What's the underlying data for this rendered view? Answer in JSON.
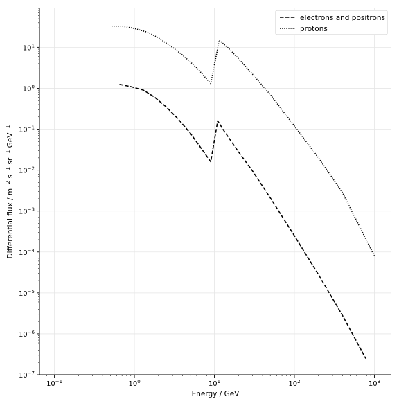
{
  "chart_data": {
    "type": "line",
    "xlabel": "Energy / GeV",
    "ylabel_parts": {
      "prefix": "Differential flux / m",
      "m_exp": "−2",
      "mid1": " s",
      "s_exp": "−1",
      "mid2": " sr",
      "sr_exp": "−1",
      "mid3": " GeV",
      "gev_exp": "−1"
    },
    "xscale": "log",
    "yscale": "log",
    "xlim": [
      0.065,
      1600
    ],
    "ylim": [
      1e-07,
      90
    ],
    "x_ticks": [
      {
        "value": 0.1,
        "base": "10",
        "exp": "−1"
      },
      {
        "value": 1,
        "base": "10",
        "exp": "0"
      },
      {
        "value": 10,
        "base": "10",
        "exp": "1"
      },
      {
        "value": 100,
        "base": "10",
        "exp": "2"
      },
      {
        "value": 1000,
        "base": "10",
        "exp": "3"
      }
    ],
    "y_ticks": [
      {
        "value": 1e-07,
        "base": "10",
        "exp": "−7"
      },
      {
        "value": 1e-06,
        "base": "10",
        "exp": "−6"
      },
      {
        "value": 1e-05,
        "base": "10",
        "exp": "−5"
      },
      {
        "value": 0.0001,
        "base": "10",
        "exp": "−4"
      },
      {
        "value": 0.001,
        "base": "10",
        "exp": "−3"
      },
      {
        "value": 0.01,
        "base": "10",
        "exp": "−2"
      },
      {
        "value": 0.1,
        "base": "10",
        "exp": "−1"
      },
      {
        "value": 1,
        "base": "10",
        "exp": "0"
      },
      {
        "value": 10,
        "base": "10",
        "exp": "1"
      }
    ],
    "grid": true,
    "legend_position": "top-right",
    "series": [
      {
        "name": "electrons and positrons",
        "dash": "dashed",
        "color": "#000000",
        "points": [
          [
            0.65,
            1.25
          ],
          [
            0.9,
            1.1
          ],
          [
            1.3,
            0.9
          ],
          [
            1.8,
            0.6
          ],
          [
            2.5,
            0.35
          ],
          [
            3.5,
            0.18
          ],
          [
            5.0,
            0.08
          ],
          [
            7.0,
            0.032
          ],
          [
            9.0,
            0.016
          ],
          [
            11.0,
            0.16
          ],
          [
            13.0,
            0.095
          ],
          [
            20.0,
            0.028
          ],
          [
            30.0,
            0.0095
          ],
          [
            50.0,
            0.0021
          ],
          [
            100.0,
            0.00025
          ],
          [
            200.0,
            2.8e-05
          ],
          [
            400.0,
            2.8e-06
          ],
          [
            780.0,
            2.5e-07
          ]
        ]
      },
      {
        "name": "protons",
        "dash": "dotted",
        "color": "#000000",
        "points": [
          [
            0.52,
            33
          ],
          [
            0.7,
            33
          ],
          [
            1.0,
            29
          ],
          [
            1.5,
            23
          ],
          [
            2.0,
            17
          ],
          [
            3.0,
            10
          ],
          [
            4.0,
            6.5
          ],
          [
            6.0,
            3.2
          ],
          [
            9.0,
            1.3
          ],
          [
            11.5,
            15
          ],
          [
            15.0,
            9.5
          ],
          [
            20.0,
            5.3
          ],
          [
            30.0,
            2.2
          ],
          [
            50.0,
            0.7
          ],
          [
            100.0,
            0.12
          ],
          [
            200.0,
            0.02
          ],
          [
            400.0,
            0.0028
          ],
          [
            1000.0,
            8e-05
          ]
        ]
      }
    ]
  }
}
